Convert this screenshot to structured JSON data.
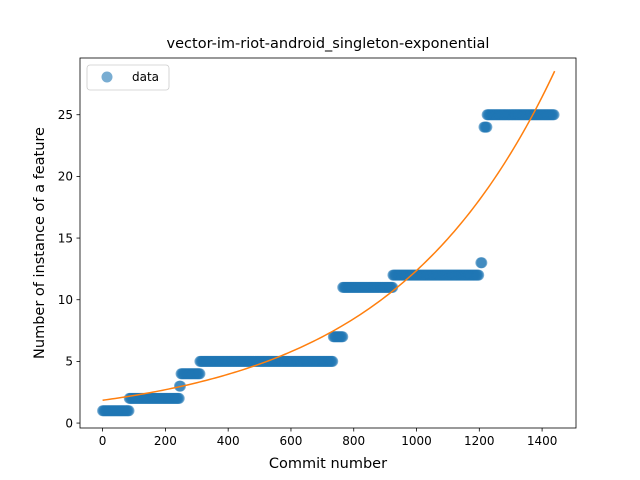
{
  "chart_data": {
    "type": "scatter",
    "title": "vector-im-riot-android_singleton-exponential",
    "xlabel": "Commit number",
    "ylabel": "Number of instance of a feature",
    "xlim": [
      -72,
      1508
    ],
    "ylim": [
      -0.4,
      29.6
    ],
    "xticks": [
      0,
      200,
      400,
      600,
      800,
      1000,
      1200,
      1400
    ],
    "yticks": [
      0,
      5,
      10,
      15,
      20,
      25
    ],
    "grid": false,
    "legend": {
      "placement": "top-left",
      "entries": [
        "data"
      ]
    },
    "colors": {
      "data": "#1f77b4",
      "fit": "#ff7f0e"
    },
    "series": [
      {
        "name": "data",
        "marker": "circle",
        "alpha": 0.6,
        "segments": [
          {
            "x_start": 0,
            "x_end": 85,
            "y": 1
          },
          {
            "x_start": 85,
            "x_end": 245,
            "y": 2
          },
          {
            "x_start": 245,
            "x_end": 250,
            "y": 3
          },
          {
            "x_start": 250,
            "x_end": 310,
            "y": 4
          },
          {
            "x_start": 310,
            "x_end": 735,
            "y": 5
          },
          {
            "x_start": 735,
            "x_end": 765,
            "y": 7
          },
          {
            "x_start": 765,
            "x_end": 925,
            "y": 11
          },
          {
            "x_start": 925,
            "x_end": 1200,
            "y": 12
          },
          {
            "x_start": 1205,
            "x_end": 1210,
            "y": 13
          },
          {
            "x_start": 1215,
            "x_end": 1225,
            "y": 24
          },
          {
            "x_start": 1225,
            "x_end": 1440,
            "y": 25
          }
        ]
      },
      {
        "name": "",
        "type": "line",
        "function": "exponential",
        "y_at_x0": 1.85,
        "growth_per_commit": 0.0019,
        "x_range": [
          0,
          1440
        ]
      }
    ]
  }
}
